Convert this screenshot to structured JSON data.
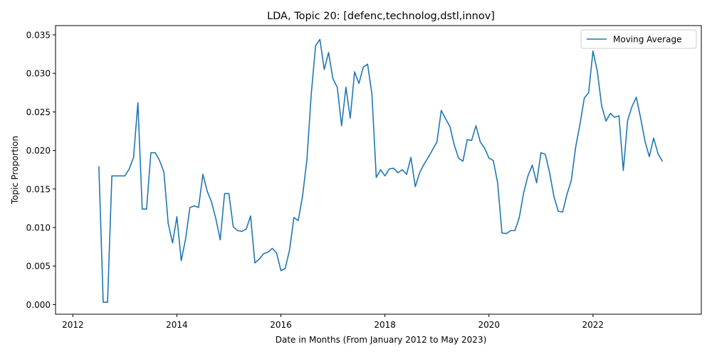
{
  "chart_data": {
    "type": "line",
    "title": "LDA, Topic 20: [defenc,technolog,dstl,innov]",
    "xlabel": "Date in Months (From January 2012 to May 2023)",
    "ylabel": "Topic Proportion",
    "xlim": [
      "2011-09",
      "2024-02"
    ],
    "ylim": [
      -0.00125,
      0.0362
    ],
    "x_ticks": [
      {
        "value": "2012-01",
        "label": "2012"
      },
      {
        "value": "2014-01",
        "label": "2014"
      },
      {
        "value": "2016-01",
        "label": "2016"
      },
      {
        "value": "2018-01",
        "label": "2018"
      },
      {
        "value": "2020-01",
        "label": "2020"
      },
      {
        "value": "2022-01",
        "label": "2022"
      }
    ],
    "y_ticks": [
      {
        "value": 0.0,
        "label": "0.000"
      },
      {
        "value": 0.005,
        "label": "0.005"
      },
      {
        "value": 0.01,
        "label": "0.010"
      },
      {
        "value": 0.015,
        "label": "0.015"
      },
      {
        "value": 0.02,
        "label": "0.020"
      },
      {
        "value": 0.025,
        "label": "0.025"
      },
      {
        "value": 0.03,
        "label": "0.030"
      },
      {
        "value": 0.035,
        "label": "0.035"
      }
    ],
    "grid": false,
    "legend_position": "top-right",
    "series": [
      {
        "name": "Moving Average",
        "color": "#1f77b4",
        "x": [
          "2012-07",
          "2012-08",
          "2012-09",
          "2012-10",
          "2012-11",
          "2012-12",
          "2013-01",
          "2013-02",
          "2013-03",
          "2013-04",
          "2013-05",
          "2013-06",
          "2013-07",
          "2013-08",
          "2013-09",
          "2013-10",
          "2013-11",
          "2013-12",
          "2014-01",
          "2014-02",
          "2014-03",
          "2014-04",
          "2014-05",
          "2014-06",
          "2014-07",
          "2014-08",
          "2014-09",
          "2014-10",
          "2014-11",
          "2014-12",
          "2015-01",
          "2015-02",
          "2015-03",
          "2015-04",
          "2015-05",
          "2015-06",
          "2015-07",
          "2015-08",
          "2015-09",
          "2015-10",
          "2015-11",
          "2015-12",
          "2016-01",
          "2016-02",
          "2016-03",
          "2016-04",
          "2016-05",
          "2016-06",
          "2016-07",
          "2016-08",
          "2016-09",
          "2016-10",
          "2016-11",
          "2016-12",
          "2017-01",
          "2017-02",
          "2017-03",
          "2017-04",
          "2017-05",
          "2017-06",
          "2017-07",
          "2017-08",
          "2017-09",
          "2017-10",
          "2017-11",
          "2017-12",
          "2018-01",
          "2018-02",
          "2018-03",
          "2018-04",
          "2018-05",
          "2018-06",
          "2018-07",
          "2018-08",
          "2018-09",
          "2018-10",
          "2018-11",
          "2018-12",
          "2019-01",
          "2019-02",
          "2019-03",
          "2019-04",
          "2019-05",
          "2019-06",
          "2019-07",
          "2019-08",
          "2019-09",
          "2019-10",
          "2019-11",
          "2019-12",
          "2020-01",
          "2020-02",
          "2020-03",
          "2020-04",
          "2020-05",
          "2020-06",
          "2020-07",
          "2020-08",
          "2020-09",
          "2020-10",
          "2020-11",
          "2020-12",
          "2021-01",
          "2021-02",
          "2021-03",
          "2021-04",
          "2021-05",
          "2021-06",
          "2021-07",
          "2021-08",
          "2021-09",
          "2021-10",
          "2021-11",
          "2021-12",
          "2022-01",
          "2022-02",
          "2022-03",
          "2022-04",
          "2022-05",
          "2022-06",
          "2022-07",
          "2022-08",
          "2022-09",
          "2022-10",
          "2022-11",
          "2022-12",
          "2023-01",
          "2023-02",
          "2023-03",
          "2023-04",
          "2023-05"
        ],
        "values": [
          0.0179,
          0.0003,
          0.0003,
          0.0167,
          0.0167,
          0.0167,
          0.0167,
          0.0176,
          0.0191,
          0.0262,
          0.0124,
          0.0124,
          0.0197,
          0.0197,
          0.0187,
          0.0172,
          0.0105,
          0.008,
          0.0114,
          0.0057,
          0.0085,
          0.0126,
          0.0128,
          0.0126,
          0.0169,
          0.0147,
          0.0133,
          0.0111,
          0.0084,
          0.0144,
          0.0144,
          0.0101,
          0.0096,
          0.0095,
          0.0098,
          0.0115,
          0.0054,
          0.0059,
          0.0066,
          0.0068,
          0.0073,
          0.0067,
          0.0044,
          0.0047,
          0.0071,
          0.0113,
          0.0109,
          0.0141,
          0.0188,
          0.0273,
          0.0336,
          0.0344,
          0.0305,
          0.0327,
          0.0293,
          0.0282,
          0.0232,
          0.0282,
          0.0242,
          0.0302,
          0.0287,
          0.0308,
          0.0312,
          0.0273,
          0.0165,
          0.0175,
          0.0167,
          0.0176,
          0.0177,
          0.0171,
          0.0175,
          0.0169,
          0.0191,
          0.0153,
          0.0171,
          0.0182,
          0.0191,
          0.0201,
          0.0211,
          0.0252,
          0.0241,
          0.0231,
          0.0207,
          0.019,
          0.0186,
          0.0214,
          0.0213,
          0.0232,
          0.0211,
          0.0203,
          0.019,
          0.0187,
          0.0158,
          0.0093,
          0.0092,
          0.0096,
          0.0096,
          0.0113,
          0.0145,
          0.0167,
          0.0181,
          0.0158,
          0.0197,
          0.0195,
          0.0171,
          0.014,
          0.0121,
          0.012,
          0.0143,
          0.0161,
          0.0204,
          0.0234,
          0.0268,
          0.0275,
          0.0329,
          0.0303,
          0.0258,
          0.0238,
          0.0248,
          0.0243,
          0.0245,
          0.0174,
          0.0239,
          0.0257,
          0.0269,
          0.0242,
          0.0212,
          0.0192,
          0.0216,
          0.0196,
          0.0186
        ]
      }
    ]
  }
}
